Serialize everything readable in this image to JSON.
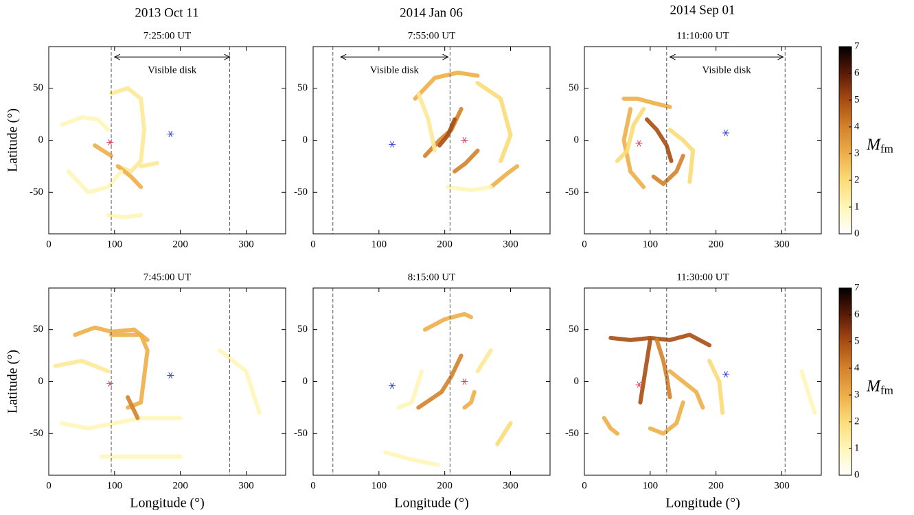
{
  "figure": {
    "column_titles": [
      "2013 Oct 11",
      "2014 Jan 06",
      "2014 Sep 01"
    ]
  },
  "colorbar": {
    "lim": [
      0,
      7
    ],
    "ticks": [
      0,
      1,
      2,
      3,
      4,
      5,
      6,
      7
    ],
    "label": "M",
    "label_sub": "fm",
    "colors": [
      "#ffffff",
      "#fff6b8",
      "#fbdc78",
      "#eeae48",
      "#d4822a",
      "#a84c12",
      "#5c1a06",
      "#000000"
    ]
  },
  "chart_data": [
    {
      "type": "heatmap",
      "title": "7:25:00 UT",
      "ylabel": "Latitude (°)",
      "xlim": [
        0,
        360
      ],
      "ylim": [
        -90,
        90
      ],
      "xticks": [
        0,
        100,
        200,
        300
      ],
      "yticks": [
        -50,
        0,
        50
      ],
      "vlines": [
        95,
        275
      ],
      "annotation": {
        "text": "Visible disk",
        "x0": 100,
        "x1": 275,
        "y": 80,
        "text_y": 67
      },
      "markers": [
        {
          "x": 93,
          "y": -2,
          "color": "#e04060"
        },
        {
          "x": 185,
          "y": 6,
          "color": "#3040d0"
        }
      ],
      "ridges": [
        {
          "x": [
            95,
            120,
            140,
            145,
            140,
            125,
            105
          ],
          "y": [
            45,
            50,
            40,
            10,
            -20,
            -30,
            -25
          ],
          "value": 1.5
        },
        {
          "x": [
            105,
            125,
            140
          ],
          "y": [
            -25,
            -35,
            -45
          ],
          "value": 3
        },
        {
          "x": [
            20,
            50,
            75,
            90
          ],
          "y": [
            15,
            22,
            20,
            10
          ],
          "value": 1
        },
        {
          "x": [
            30,
            60,
            90,
            110
          ],
          "y": [
            -30,
            -50,
            -45,
            -30
          ],
          "value": 1
        },
        {
          "x": [
            70,
            95
          ],
          "y": [
            -5,
            -15
          ],
          "value": 3
        },
        {
          "x": [
            140,
            165
          ],
          "y": [
            -25,
            -22
          ],
          "value": 1.5
        },
        {
          "x": [
            90,
            115,
            140
          ],
          "y": [
            -72,
            -74,
            -72
          ],
          "value": 1
        }
      ]
    },
    {
      "type": "heatmap",
      "title": "7:55:00 UT",
      "xlim": [
        0,
        360
      ],
      "ylim": [
        -90,
        90
      ],
      "xticks": [
        0,
        100,
        200,
        300
      ],
      "yticks": [
        -50,
        0,
        50
      ],
      "vlines": [
        30,
        208
      ],
      "annotation": {
        "text": "Visible disk",
        "x0": 42,
        "x1": 205,
        "y": 80,
        "text_y": 67
      },
      "markers": [
        {
          "x": 120,
          "y": -4,
          "color": "#3040d0"
        },
        {
          "x": 230,
          "y": 0,
          "color": "#e04060"
        }
      ],
      "ridges": [
        {
          "x": [
            155,
            185,
            220,
            250
          ],
          "y": [
            40,
            60,
            65,
            62
          ],
          "value": 3
        },
        {
          "x": [
            170,
            192,
            210,
            225
          ],
          "y": [
            -15,
            0,
            10,
            30
          ],
          "value": 4
        },
        {
          "x": [
            192,
            205,
            215
          ],
          "y": [
            -5,
            5,
            20
          ],
          "value": 5
        },
        {
          "x": [
            215,
            232,
            250
          ],
          "y": [
            -30,
            -22,
            -10
          ],
          "value": 4
        },
        {
          "x": [
            270,
            295,
            310
          ],
          "y": [
            -45,
            -32,
            -25
          ],
          "value": 3
        },
        {
          "x": [
            250,
            285,
            300,
            285
          ],
          "y": [
            55,
            40,
            5,
            -20
          ],
          "value": 2
        },
        {
          "x": [
            160,
            175,
            185
          ],
          "y": [
            45,
            20,
            -10
          ],
          "value": 1.5
        },
        {
          "x": [
            205,
            240,
            270
          ],
          "y": [
            -45,
            -48,
            -45
          ],
          "value": 1
        }
      ]
    },
    {
      "type": "heatmap",
      "title": "11:10:00 UT",
      "xlim": [
        0,
        360
      ],
      "ylim": [
        -90,
        90
      ],
      "xticks": [
        0,
        100,
        200,
        300
      ],
      "yticks": [
        -50,
        0,
        50
      ],
      "vlines": [
        125,
        305
      ],
      "annotation": {
        "text": "Visible disk",
        "x0": 130,
        "x1": 302,
        "y": 80,
        "text_y": 67
      },
      "markers": [
        {
          "x": 83,
          "y": -3,
          "color": "#e04060"
        },
        {
          "x": 215,
          "y": 7,
          "color": "#3040d0"
        }
      ],
      "ridges": [
        {
          "x": [
            60,
            80,
            110,
            130
          ],
          "y": [
            40,
            40,
            35,
            32
          ],
          "value": 3
        },
        {
          "x": [
            70,
            60,
            70,
            90
          ],
          "y": [
            30,
            0,
            -30,
            -45
          ],
          "value": 3
        },
        {
          "x": [
            95,
            110,
            125,
            132
          ],
          "y": [
            20,
            10,
            -5,
            -20
          ],
          "value": 5
        },
        {
          "x": [
            105,
            120,
            140,
            150
          ],
          "y": [
            -35,
            -42,
            -30,
            -15
          ],
          "value": 4
        },
        {
          "x": [
            130,
            150,
            165,
            160
          ],
          "y": [
            10,
            0,
            -10,
            -40
          ],
          "value": 2
        },
        {
          "x": [
            50,
            65,
            75,
            90
          ],
          "y": [
            -20,
            -10,
            15,
            30
          ],
          "value": 2
        }
      ]
    },
    {
      "type": "heatmap",
      "title": "7:45:00 UT",
      "xlabel": "Longitude (°)",
      "ylabel": "Latitude (°)",
      "xlim": [
        0,
        360
      ],
      "ylim": [
        -90,
        90
      ],
      "xticks": [
        0,
        100,
        200,
        300
      ],
      "yticks": [
        -50,
        0,
        50
      ],
      "vlines": [
        95,
        275
      ],
      "markers": [
        {
          "x": 93,
          "y": -2,
          "color": "#e04060"
        },
        {
          "x": 185,
          "y": 6,
          "color": "#3040d0"
        }
      ],
      "ridges": [
        {
          "x": [
            40,
            70,
            95,
            130,
            150
          ],
          "y": [
            45,
            52,
            48,
            50,
            40
          ],
          "value": 3
        },
        {
          "x": [
            95,
            140,
            150,
            145,
            140,
            120
          ],
          "y": [
            45,
            45,
            30,
            5,
            -20,
            -25
          ],
          "value": 3
        },
        {
          "x": [
            10,
            50,
            90
          ],
          "y": [
            15,
            20,
            10
          ],
          "value": 1.5
        },
        {
          "x": [
            20,
            60,
            100,
            140,
            200
          ],
          "y": [
            -40,
            -45,
            -40,
            -35,
            -35
          ],
          "value": 1
        },
        {
          "x": [
            80,
            140,
            200
          ],
          "y": [
            -72,
            -72,
            -72
          ],
          "value": 1
        },
        {
          "x": [
            260,
            300,
            320
          ],
          "y": [
            30,
            10,
            -30
          ],
          "value": 1
        },
        {
          "x": [
            120,
            135
          ],
          "y": [
            -15,
            -35
          ],
          "value": 4
        }
      ]
    },
    {
      "type": "heatmap",
      "title": "8:15:00 UT",
      "xlabel": "Longitude (°)",
      "xlim": [
        0,
        360
      ],
      "ylim": [
        -90,
        90
      ],
      "xticks": [
        0,
        100,
        200,
        300
      ],
      "yticks": [
        -50,
        0,
        50
      ],
      "vlines": [
        30,
        208
      ],
      "markers": [
        {
          "x": 120,
          "y": -4,
          "color": "#3040d0"
        },
        {
          "x": 230,
          "y": 0,
          "color": "#e04060"
        }
      ],
      "ridges": [
        {
          "x": [
            170,
            200,
            230,
            240
          ],
          "y": [
            50,
            60,
            65,
            62
          ],
          "value": 3
        },
        {
          "x": [
            160,
            195,
            210,
            225
          ],
          "y": [
            -25,
            -10,
            5,
            25
          ],
          "value": 4
        },
        {
          "x": [
            230,
            240,
            245
          ],
          "y": [
            -25,
            -20,
            -10
          ],
          "value": 3
        },
        {
          "x": [
            280,
            290,
            300
          ],
          "y": [
            -60,
            -50,
            -40
          ],
          "value": 2
        },
        {
          "x": [
            130,
            150,
            165
          ],
          "y": [
            -25,
            -20,
            10
          ],
          "value": 1
        },
        {
          "x": [
            250,
            270
          ],
          "y": [
            10,
            30
          ],
          "value": 1.5
        },
        {
          "x": [
            110,
            150,
            190
          ],
          "y": [
            -68,
            -75,
            -80
          ],
          "value": 1
        }
      ]
    },
    {
      "type": "heatmap",
      "title": "11:30:00 UT",
      "xlabel": "Longitude (°)",
      "xlim": [
        0,
        360
      ],
      "ylim": [
        -90,
        90
      ],
      "xticks": [
        0,
        100,
        200,
        300
      ],
      "yticks": [
        -50,
        0,
        50
      ],
      "vlines": [
        125,
        305
      ],
      "markers": [
        {
          "x": 83,
          "y": -3,
          "color": "#e04060"
        },
        {
          "x": 215,
          "y": 7,
          "color": "#3040d0"
        }
      ],
      "ridges": [
        {
          "x": [
            40,
            70,
            100,
            130,
            160,
            190
          ],
          "y": [
            42,
            40,
            42,
            40,
            45,
            35
          ],
          "value": 5
        },
        {
          "x": [
            100,
            95,
            90,
            85
          ],
          "y": [
            40,
            20,
            0,
            -20
          ],
          "value": 5
        },
        {
          "x": [
            110,
            120,
            125,
            130
          ],
          "y": [
            40,
            20,
            5,
            -15
          ],
          "value": 4
        },
        {
          "x": [
            130,
            150,
            170,
            180
          ],
          "y": [
            10,
            0,
            -10,
            -25
          ],
          "value": 3
        },
        {
          "x": [
            30,
            40,
            50
          ],
          "y": [
            -35,
            -45,
            -50
          ],
          "value": 3
        },
        {
          "x": [
            100,
            120,
            140,
            150
          ],
          "y": [
            -45,
            -50,
            -40,
            -20
          ],
          "value": 3
        },
        {
          "x": [
            190,
            205,
            210
          ],
          "y": [
            20,
            0,
            -30
          ],
          "value": 2
        },
        {
          "x": [
            330,
            350
          ],
          "y": [
            10,
            -30
          ],
          "value": 1
        }
      ]
    }
  ]
}
